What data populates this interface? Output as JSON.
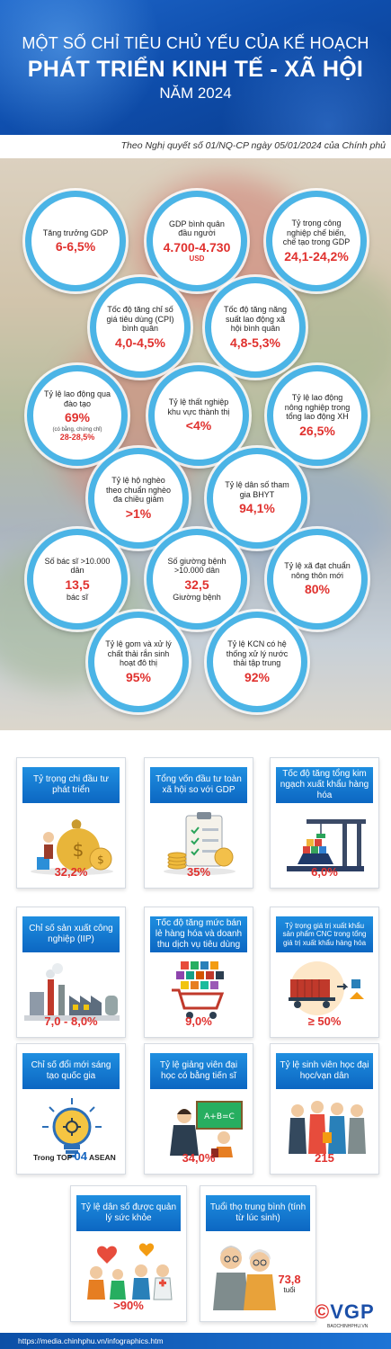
{
  "header": {
    "line1": "MỘT SỐ CHỈ TIÊU CHỦ YẾU CỦA KẾ HOẠCH",
    "line2": "PHÁT TRIỂN KINH TẾ - XÃ HỘI",
    "line3": "NĂM 2024"
  },
  "source": "Theo Nghị quyết số 01/NQ-CP ngày 05/01/2024 của Chính phủ",
  "bubbles": [
    {
      "label": "Tăng trưởng GDP",
      "value": "6-6,5%"
    },
    {
      "label": "GDP bình quân đầu người",
      "value": "4.700-4.730",
      "unit": "USD"
    },
    {
      "label": "Tỷ trọng công nghiệp chế biến, chế tạo trong GDP",
      "value": "24,1-24,2%"
    },
    {
      "label": "Tốc độ tăng chỉ số giá tiêu dùng (CPI) bình quân",
      "value": "4,0-4,5%"
    },
    {
      "label": "Tốc độ tăng năng suất lao động xã hội bình quân",
      "value": "4,8-5,3%"
    },
    {
      "label": "Tỷ lệ lao động qua đào tạo",
      "value": "69%",
      "note": "(có bằng, chứng chỉ)",
      "subvalue": "28-28,5%"
    },
    {
      "label": "Tỷ lệ thất nghiệp khu vực thành thị",
      "value": "<4%"
    },
    {
      "label": "Tỷ lệ lao động nông nghiệp trong tổng lao động XH",
      "value": "26,5%"
    },
    {
      "label": "Tỷ lệ hộ nghèo theo chuẩn nghèo đa chiều giảm",
      "value": ">1%"
    },
    {
      "label": "Tỷ lệ dân số tham gia BHYT",
      "value": "94,1%"
    },
    {
      "label": "Số bác sĩ >10.000 dân",
      "value": "13,5",
      "unit2": "bác sĩ"
    },
    {
      "label": "Số giường bệnh >10.000 dân",
      "value": "32,5",
      "unit2": "Giường bệnh"
    },
    {
      "label": "Tỷ lệ xã đạt chuẩn nông thôn mới",
      "value": "80%"
    },
    {
      "label": "Tỷ lệ gom và xử lý chất thải rắn sinh hoạt đô thị",
      "value": "95%"
    },
    {
      "label": "Tỷ lệ KCN có hệ thống xử lý nước thải tập trung",
      "value": "92%"
    }
  ],
  "cards": [
    {
      "title": "Tỷ trọng chi đầu tư phát triển",
      "value": "32,2%",
      "icon": "money-bag-icon"
    },
    {
      "title": "Tổng vốn đầu tư toàn xã hội so với GDP",
      "value": "35%",
      "icon": "clipboard-coins-icon"
    },
    {
      "title": "Tốc độ tăng tổng kim ngạch xuất khẩu hàng hóa",
      "value": "6,0%",
      "icon": "port-crane-icon"
    },
    {
      "title": "Chỉ số sản xuất công nghiệp (IIP)",
      "value": "7,0 - 8,0%",
      "icon": "factory-icon"
    },
    {
      "title": "Tốc độ tăng mức bán lẻ hàng hóa và doanh thu dịch vụ tiêu dùng",
      "value": "9,0%",
      "icon": "shopping-cart-icon"
    },
    {
      "title": "Tỷ trọng giá trị xuất khẩu sản phẩm CNC trong tổng giá trị xuất khẩu hàng hóa",
      "value": "≥ 50%",
      "icon": "cargo-truck-icon"
    },
    {
      "title": "Chỉ số đổi mới sáng tạo quốc gia",
      "value": "",
      "top_label": "Trong TOP",
      "top_rank": "04",
      "top_region": "ASEAN",
      "icon": "lightbulb-icon"
    },
    {
      "title": "Tỷ lệ giảng viên đại học có bằng tiến sĩ",
      "value": "34,0%",
      "icon": "lecturer-icon"
    },
    {
      "title": "Tỷ lệ sinh viên học đại học/vạn dân",
      "value": "215",
      "icon": "students-icon"
    },
    {
      "title": "Tỷ lệ dân số được quản lý sức khỏe",
      "value": ">90%",
      "icon": "health-care-icon"
    },
    {
      "title": "Tuổi thọ trung bình (tính từ lúc sinh)",
      "value": "73,8",
      "unit": "tuổi",
      "icon": "elderly-couple-icon"
    }
  ],
  "footer": {
    "url": "https://media.chinhphu.vn/infographics.htm",
    "logo": "VGP",
    "logo_sub": "BAOCHINHPHU.VN"
  }
}
